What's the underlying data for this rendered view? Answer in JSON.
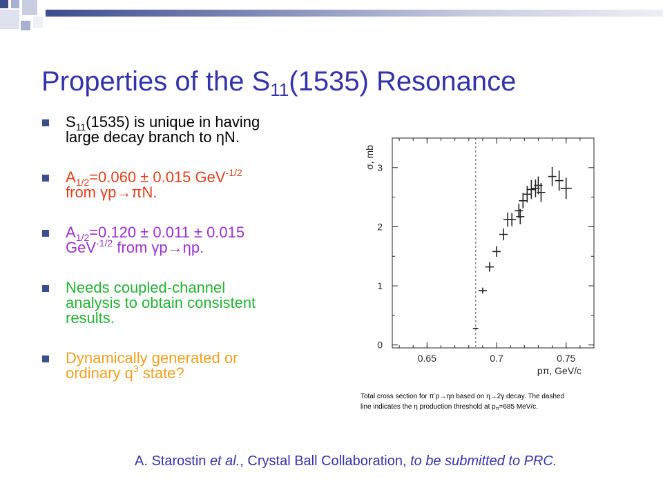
{
  "colors": {
    "title": "#3333aa",
    "bullet_marker": "#3d4e8f",
    "bullet_1": "#000000",
    "bullet_2": "#e0401c",
    "bullet_3": "#9b30d0",
    "bullet_4": "#22b232",
    "bullet_5": "#f0a020",
    "citation": "#3333aa"
  },
  "slide": {
    "title": {
      "pre": "Properties of the S",
      "sub": "11",
      "post": "(1535) Resonance"
    },
    "bullets": [
      {
        "line1_pre": "S",
        "line1_sub": "11",
        "line1_post": "(1535) is unique in having",
        "line2": "large decay branch to ηN."
      },
      {
        "line1_pre": "A",
        "line1_sub": "1/2",
        "line1_mid": "=0.060 ± 0.015 GeV",
        "line1_sup": "-1/2",
        "line2": "from γp→πN."
      },
      {
        "line1_pre": "A",
        "line1_sub": "1/2",
        "line1_post": "=0.120 ± 0.011 ± 0.015",
        "line2_pre": "GeV",
        "line2_sup": "-1/2",
        "line2_post": " from γp→ηp."
      },
      {
        "line1": "Needs coupled-channel",
        "line2": "analysis to obtain consistent",
        "line3": "results."
      },
      {
        "line1": "Dynamically generated or",
        "line2_pre": "ordinary q",
        "line2_sup": "3",
        "line2_post": " state?"
      }
    ],
    "caption": {
      "line1_pre": "Total cross section for π",
      "line1_sup": "-",
      "line1_post": "p→ηn based on η→2γ decay.  The dashed",
      "line2_pre": "line indicates the η production threshold at p",
      "line2_sub": "π",
      "line2_post": "=685 MeV/c."
    },
    "citation": {
      "author": "A. Starostin ",
      "etal": "et al.",
      "collab": ", Crystal Ball Collaboration, ",
      "status": "to be submitted to PRC."
    }
  },
  "chart_data": {
    "type": "scatter",
    "title": "",
    "xlabel": "pπ, GeV/c",
    "ylabel": "σ, mb",
    "xlim": [
      0.625,
      0.77
    ],
    "ylim": [
      -0.05,
      3.5
    ],
    "x_ticks": [
      0.65,
      0.7,
      0.75
    ],
    "x_tick_labels": [
      "0.65",
      "0.7",
      "0.75"
    ],
    "y_ticks": [
      0,
      1,
      2,
      3
    ],
    "y_tick_labels": [
      "0",
      "1",
      "2",
      "3"
    ],
    "threshold_line_x": 0.685,
    "grid": false,
    "series": [
      {
        "points": [
          {
            "x": 0.685,
            "y": 0.28,
            "xerr": 0.002,
            "yerr": 0.01
          },
          {
            "x": 0.69,
            "y": 0.92,
            "xerr": 0.003,
            "yerr": 0.05
          },
          {
            "x": 0.695,
            "y": 1.32,
            "xerr": 0.003,
            "yerr": 0.08
          },
          {
            "x": 0.7,
            "y": 1.58,
            "xerr": 0.003,
            "yerr": 0.09
          },
          {
            "x": 0.705,
            "y": 1.87,
            "xerr": 0.003,
            "yerr": 0.1
          },
          {
            "x": 0.708,
            "y": 2.12,
            "xerr": 0.003,
            "yerr": 0.12
          },
          {
            "x": 0.711,
            "y": 2.12,
            "xerr": 0.003,
            "yerr": 0.11
          },
          {
            "x": 0.716,
            "y": 2.27,
            "xerr": 0.003,
            "yerr": 0.12
          },
          {
            "x": 0.717,
            "y": 2.17,
            "xerr": 0.003,
            "yerr": 0.13
          },
          {
            "x": 0.719,
            "y": 2.44,
            "xerr": 0.003,
            "yerr": 0.13
          },
          {
            "x": 0.722,
            "y": 2.55,
            "xerr": 0.003,
            "yerr": 0.14
          },
          {
            "x": 0.725,
            "y": 2.63,
            "xerr": 0.003,
            "yerr": 0.16
          },
          {
            "x": 0.728,
            "y": 2.65,
            "xerr": 0.003,
            "yerr": 0.15
          },
          {
            "x": 0.73,
            "y": 2.7,
            "xerr": 0.003,
            "yerr": 0.15
          },
          {
            "x": 0.732,
            "y": 2.58,
            "xerr": 0.003,
            "yerr": 0.16
          },
          {
            "x": 0.74,
            "y": 2.85,
            "xerr": 0.003,
            "yerr": 0.16
          },
          {
            "x": 0.745,
            "y": 2.78,
            "xerr": 0.003,
            "yerr": 0.17
          },
          {
            "x": 0.75,
            "y": 2.65,
            "xerr": 0.004,
            "yerr": 0.18
          }
        ]
      }
    ]
  }
}
